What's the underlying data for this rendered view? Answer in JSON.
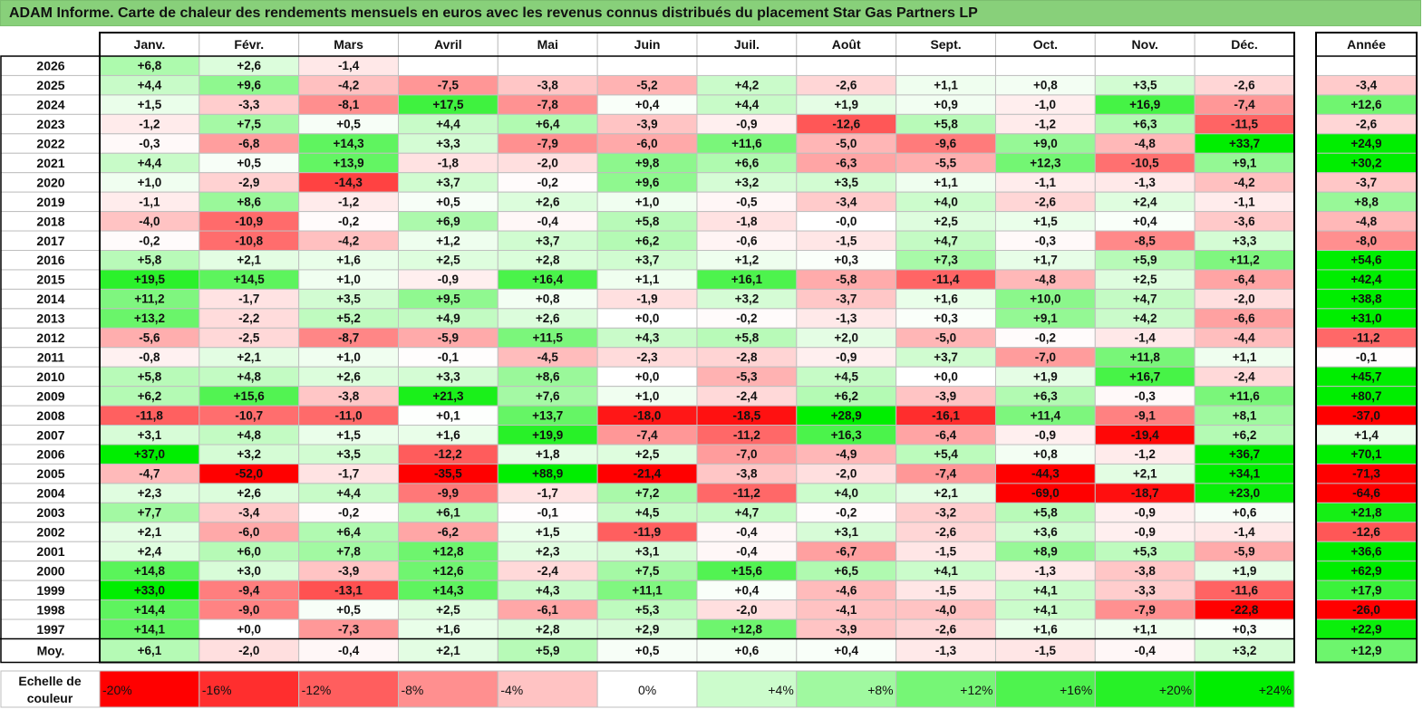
{
  "title": "ADAM Informe. Carte de chaleur des rendements mensuels en euros avec les revenus connus distribués du placement Star Gas Partners LP",
  "chart_data": {
    "type": "heatmap",
    "title": "ADAM Informe. Carte de chaleur des rendements mensuels en euros avec les revenus connus distribués du placement Star Gas Partners LP",
    "columns": [
      "Janv.",
      "Févr.",
      "Mars",
      "Avril",
      "Mai",
      "Juin",
      "Juil.",
      "Août",
      "Sept.",
      "Oct.",
      "Nov.",
      "Déc."
    ],
    "year_column": "Année",
    "rows": [
      {
        "label": "2026",
        "values": [
          "+6,8",
          "+2,6",
          "-1,4",
          "",
          "",
          "",
          "",
          "",
          "",
          "",
          "",
          ""
        ],
        "year": ""
      },
      {
        "label": "2025",
        "values": [
          "+4,4",
          "+9,6",
          "-4,2",
          "-7,5",
          "-3,8",
          "-5,2",
          "+4,2",
          "-2,6",
          "+1,1",
          "+0,8",
          "+3,5",
          "-2,6"
        ],
        "year": "-3,4"
      },
      {
        "label": "2024",
        "values": [
          "+1,5",
          "-3,3",
          "-8,1",
          "+17,5",
          "-7,8",
          "+0,4",
          "+4,4",
          "+1,9",
          "+0,9",
          "-1,0",
          "+16,9",
          "-7,4"
        ],
        "year": "+12,6"
      },
      {
        "label": "2023",
        "values": [
          "-1,2",
          "+7,5",
          "+0,5",
          "+4,4",
          "+6,4",
          "-3,9",
          "-0,9",
          "-12,6",
          "+5,8",
          "-1,2",
          "+6,3",
          "-11,5"
        ],
        "year": "-2,6"
      },
      {
        "label": "2022",
        "values": [
          "-0,3",
          "-6,8",
          "+14,3",
          "+3,3",
          "-7,9",
          "-6,0",
          "+11,6",
          "-5,0",
          "-9,6",
          "+9,0",
          "-4,8",
          "+33,7"
        ],
        "year": "+24,9"
      },
      {
        "label": "2021",
        "values": [
          "+4,4",
          "+0,5",
          "+13,9",
          "-1,8",
          "-2,0",
          "+9,8",
          "+6,6",
          "-6,3",
          "-5,5",
          "+12,3",
          "-10,5",
          "+9,1"
        ],
        "year": "+30,2"
      },
      {
        "label": "2020",
        "values": [
          "+1,0",
          "-2,9",
          "-14,3",
          "+3,7",
          "-0,2",
          "+9,6",
          "+3,2",
          "+3,5",
          "+1,1",
          "-1,1",
          "-1,3",
          "-4,2"
        ],
        "year": "-3,7"
      },
      {
        "label": "2019",
        "values": [
          "-1,1",
          "+8,6",
          "-1,2",
          "+0,5",
          "+2,6",
          "+1,0",
          "-0,5",
          "-3,4",
          "+4,0",
          "-2,6",
          "+2,4",
          "-1,1"
        ],
        "year": "+8,8"
      },
      {
        "label": "2018",
        "values": [
          "-4,0",
          "-10,9",
          "-0,2",
          "+6,9",
          "-0,4",
          "+5,8",
          "-1,8",
          "-0,0",
          "+2,5",
          "+1,5",
          "+0,4",
          "-3,6"
        ],
        "year": "-4,8"
      },
      {
        "label": "2017",
        "values": [
          "-0,2",
          "-10,8",
          "-4,2",
          "+1,2",
          "+3,7",
          "+6,2",
          "-0,6",
          "-1,5",
          "+4,7",
          "-0,3",
          "-8,5",
          "+3,3"
        ],
        "year": "-8,0"
      },
      {
        "label": "2016",
        "values": [
          "+5,8",
          "+2,1",
          "+1,6",
          "+2,5",
          "+2,8",
          "+3,7",
          "+1,2",
          "+0,3",
          "+7,3",
          "+1,7",
          "+5,9",
          "+11,2"
        ],
        "year": "+54,6"
      },
      {
        "label": "2015",
        "values": [
          "+19,5",
          "+14,5",
          "+1,0",
          "-0,9",
          "+16,4",
          "+1,1",
          "+16,1",
          "-5,8",
          "-11,4",
          "-4,8",
          "+2,5",
          "-6,4"
        ],
        "year": "+42,4"
      },
      {
        "label": "2014",
        "values": [
          "+11,2",
          "-1,7",
          "+3,5",
          "+9,5",
          "+0,8",
          "-1,9",
          "+3,2",
          "-3,7",
          "+1,6",
          "+10,0",
          "+4,7",
          "-2,0"
        ],
        "year": "+38,8"
      },
      {
        "label": "2013",
        "values": [
          "+13,2",
          "-2,2",
          "+5,2",
          "+4,9",
          "+2,6",
          "+0,0",
          "-0,2",
          "-1,3",
          "+0,3",
          "+9,1",
          "+4,2",
          "-6,6"
        ],
        "year": "+31,0"
      },
      {
        "label": "2012",
        "values": [
          "-5,6",
          "-2,5",
          "-8,7",
          "-5,9",
          "+11,5",
          "+4,3",
          "+5,8",
          "+2,0",
          "-5,0",
          "-0,2",
          "-1,4",
          "-4,4"
        ],
        "year": "-11,2"
      },
      {
        "label": "2011",
        "values": [
          "-0,8",
          "+2,1",
          "+1,0",
          "-0,1",
          "-4,5",
          "-2,3",
          "-2,8",
          "-0,9",
          "+3,7",
          "-7,0",
          "+11,8",
          "+1,1"
        ],
        "year": "-0,1"
      },
      {
        "label": "2010",
        "values": [
          "+5,8",
          "+4,8",
          "+2,6",
          "+3,3",
          "+8,6",
          "+0,0",
          "-5,3",
          "+4,5",
          "+0,0",
          "+1,9",
          "+16,7",
          "-2,4"
        ],
        "year": "+45,7"
      },
      {
        "label": "2009",
        "values": [
          "+6,2",
          "+15,6",
          "-3,8",
          "+21,3",
          "+7,6",
          "+1,0",
          "-2,4",
          "+6,2",
          "-3,9",
          "+6,3",
          "-0,3",
          "+11,6"
        ],
        "year": "+80,7"
      },
      {
        "label": "2008",
        "values": [
          "-11,8",
          "-10,7",
          "-11,0",
          "+0,1",
          "+13,7",
          "-18,0",
          "-18,5",
          "+28,9",
          "-16,1",
          "+11,4",
          "-9,1",
          "+8,1"
        ],
        "year": "-37,0"
      },
      {
        "label": "2007",
        "values": [
          "+3,1",
          "+4,8",
          "+1,5",
          "+1,6",
          "+19,9",
          "-7,4",
          "-11,2",
          "+16,3",
          "-6,4",
          "-0,9",
          "-19,4",
          "+6,2"
        ],
        "year": "+1,4"
      },
      {
        "label": "2006",
        "values": [
          "+37,0",
          "+3,2",
          "+3,5",
          "-12,2",
          "+1,8",
          "+2,5",
          "-7,0",
          "-4,9",
          "+5,4",
          "+0,8",
          "-1,2",
          "+36,7"
        ],
        "year": "+70,1"
      },
      {
        "label": "2005",
        "values": [
          "-4,7",
          "-52,0",
          "-1,7",
          "-35,5",
          "+88,9",
          "-21,4",
          "-3,8",
          "-2,0",
          "-7,4",
          "-44,3",
          "+2,1",
          "+34,1"
        ],
        "year": "-71,3"
      },
      {
        "label": "2004",
        "values": [
          "+2,3",
          "+2,6",
          "+4,4",
          "-9,9",
          "-1,7",
          "+7,2",
          "-11,2",
          "+4,0",
          "+2,1",
          "-69,0",
          "-18,7",
          "+23,0"
        ],
        "year": "-64,6"
      },
      {
        "label": "2003",
        "values": [
          "+7,7",
          "-3,4",
          "-0,2",
          "+6,1",
          "-0,1",
          "+4,5",
          "+4,7",
          "-0,2",
          "-3,2",
          "+5,8",
          "-0,9",
          "+0,6"
        ],
        "year": "+21,8"
      },
      {
        "label": "2002",
        "values": [
          "+2,1",
          "-6,0",
          "+6,4",
          "-6,2",
          "+1,5",
          "-11,9",
          "-0,4",
          "+3,1",
          "-2,6",
          "+3,6",
          "-0,9",
          "-1,4"
        ],
        "year": "-12,6"
      },
      {
        "label": "2001",
        "values": [
          "+2,4",
          "+6,0",
          "+7,8",
          "+12,8",
          "+2,3",
          "+3,1",
          "-0,4",
          "-6,7",
          "-1,5",
          "+8,9",
          "+5,3",
          "-5,9"
        ],
        "year": "+36,6"
      },
      {
        "label": "2000",
        "values": [
          "+14,8",
          "+3,0",
          "-3,9",
          "+12,6",
          "-2,4",
          "+7,5",
          "+15,6",
          "+6,5",
          "+4,1",
          "-1,3",
          "-3,8",
          "+1,9"
        ],
        "year": "+62,9"
      },
      {
        "label": "1999",
        "values": [
          "+33,0",
          "-9,4",
          "-13,1",
          "+14,3",
          "+4,3",
          "+11,1",
          "+0,4",
          "-4,6",
          "-1,5",
          "+4,1",
          "-3,3",
          "-11,6"
        ],
        "year": "+17,9"
      },
      {
        "label": "1998",
        "values": [
          "+14,4",
          "-9,0",
          "+0,5",
          "+2,5",
          "-6,1",
          "+5,3",
          "-2,0",
          "-4,1",
          "-4,0",
          "+4,1",
          "-7,9",
          "-22,8"
        ],
        "year": "-26,0"
      },
      {
        "label": "1997",
        "values": [
          "+14,1",
          "+0,0",
          "-7,3",
          "+1,6",
          "+2,8",
          "+2,9",
          "+12,8",
          "-3,9",
          "-2,6",
          "+1,6",
          "+1,1",
          "+0,3"
        ],
        "year": "+22,9"
      }
    ],
    "average": {
      "label": "Moy.",
      "values": [
        "+6,1",
        "-2,0",
        "-0,4",
        "+2,1",
        "+5,9",
        "+0,5",
        "+0,6",
        "+0,4",
        "-1,3",
        "-1,5",
        "-0,4",
        "+3,2"
      ],
      "year": "+12,9"
    },
    "scale": {
      "label": "Echelle de couleur",
      "items": [
        "-20%",
        "-16%",
        "-12%",
        "-8%",
        "-4%",
        "0%",
        "+4%",
        "+8%",
        "+12%",
        "+16%",
        "+20%",
        "+24%"
      ]
    },
    "colors": {
      "title_bar": "#88d07a",
      "negative": "#ff0000",
      "neutral": "#ffffff",
      "positive": "#00ee00",
      "grid": "#bfbfbf"
    }
  }
}
